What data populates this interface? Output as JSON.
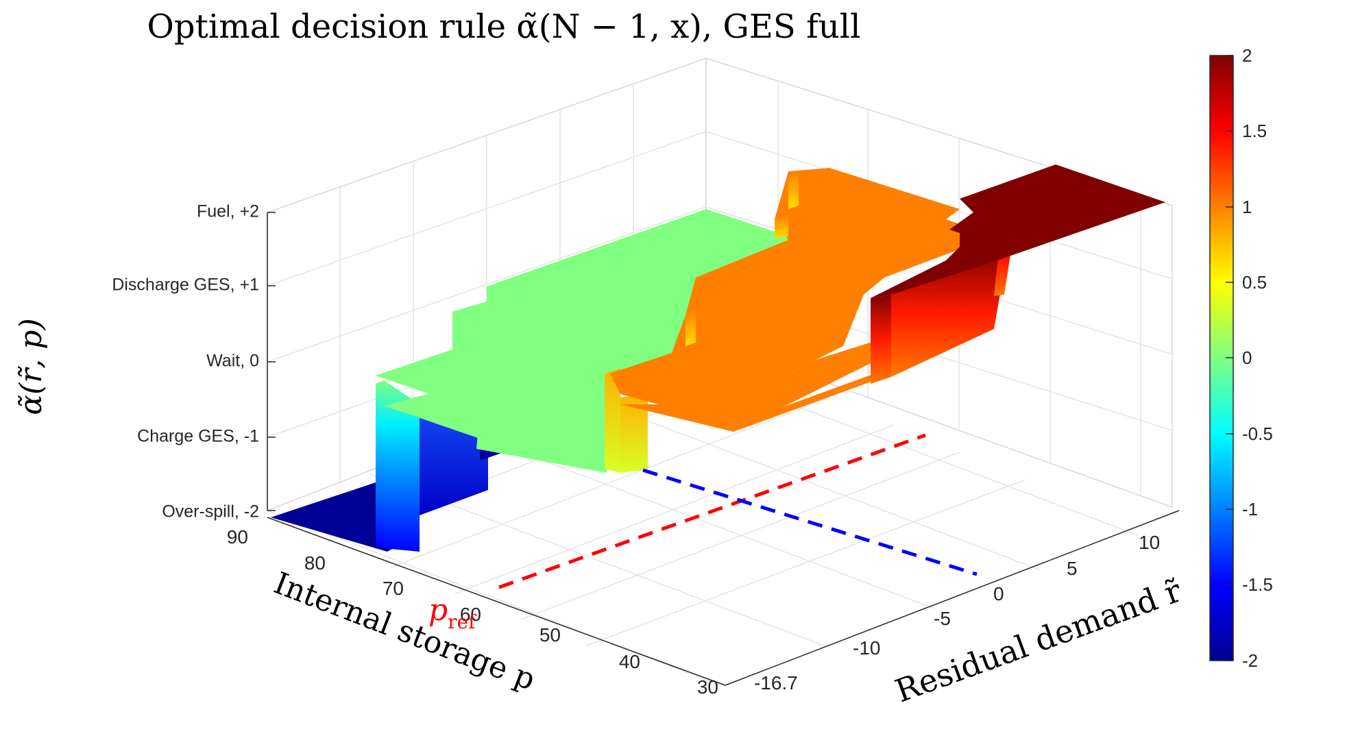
{
  "chart_data": {
    "type": "surface3d",
    "title": "Optimal decision rule α̃(N − 1, x),  GES full",
    "zlabel": "α̃(r̃, p)",
    "xlabel": "Residual demand r̃",
    "ylabel": "Internal storage p",
    "x_ticks": [
      "-16.7",
      "-10",
      "-5",
      "0",
      "5",
      "10"
    ],
    "x_tick_values": [
      -16.7,
      -10,
      -5,
      0,
      5,
      10
    ],
    "x_range": [
      -16.7,
      13.3
    ],
    "y_ticks": [
      "90",
      "80",
      "70",
      "60",
      "50",
      "40",
      "30"
    ],
    "y_tick_values": [
      90,
      80,
      70,
      60,
      50,
      40,
      30
    ],
    "y_range": [
      30,
      90
    ],
    "z_ticks": [
      "Over-spill, -2",
      "Charge GES, -1",
      "Wait,  0",
      "Discharge GES, +1",
      "Fuel, +2"
    ],
    "z_tick_values": [
      -2,
      -1,
      0,
      1,
      2
    ],
    "z_range": [
      -2,
      2
    ],
    "p_ref_label": "p",
    "p_ref_subscript": "ref",
    "p_ref_value": 60,
    "r_ref_value": 0,
    "colorbar": {
      "colormap": "jet",
      "limits": [
        -2,
        2
      ],
      "ticks": [
        "2",
        "1.5",
        "1",
        "0.5",
        "0",
        "-0.5",
        "-1",
        "-1.5",
        "-2"
      ],
      "tick_values": [
        2,
        1.5,
        1,
        0.5,
        0,
        -0.5,
        -1,
        -1.5,
        -2
      ]
    },
    "decision_regions": [
      {
        "name": "Over-spill",
        "value": -2,
        "r_from": -16.7,
        "r_to": -10,
        "p_from": 74,
        "p_to": 90
      },
      {
        "name": "Charge GES",
        "value": -1,
        "r_from": -10,
        "r_to": -3,
        "p_from": 74,
        "p_to": 90
      },
      {
        "name": "Wait",
        "value": 0,
        "r_from": -10,
        "r_to": 0,
        "p_from": 60,
        "p_to": 90
      },
      {
        "name": "Discharge GES",
        "value": 1,
        "r_from": -3,
        "r_to": 13.3,
        "p_from": 30,
        "p_to": 60
      },
      {
        "name": "Fuel",
        "value": 2,
        "r_from": 5,
        "r_to": 13.3,
        "p_from": 30,
        "p_to": 45
      }
    ]
  }
}
